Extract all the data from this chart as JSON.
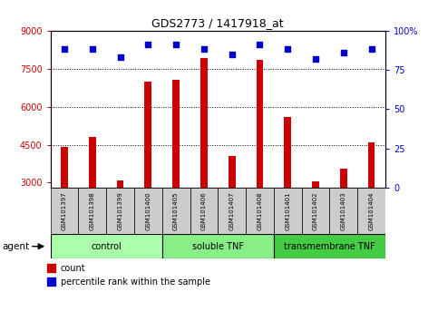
{
  "title": "GDS2773 / 1417918_at",
  "samples": [
    "GSM101397",
    "GSM101398",
    "GSM101399",
    "GSM101400",
    "GSM101405",
    "GSM101406",
    "GSM101407",
    "GSM101408",
    "GSM101401",
    "GSM101402",
    "GSM101403",
    "GSM101404"
  ],
  "counts": [
    4400,
    4800,
    3100,
    7000,
    7050,
    7900,
    4050,
    7850,
    5600,
    3050,
    3550,
    4600
  ],
  "percentile_ranks": [
    88,
    88,
    83,
    91,
    91,
    88,
    85,
    91,
    88,
    82,
    86,
    88
  ],
  "groups": [
    {
      "label": "control",
      "start": 0,
      "end": 3,
      "color": "#aaffaa"
    },
    {
      "label": "soluble TNF",
      "start": 4,
      "end": 7,
      "color": "#88ee88"
    },
    {
      "label": "transmembrane TNF",
      "start": 8,
      "end": 11,
      "color": "#44cc44"
    }
  ],
  "ylim_left": [
    2800,
    9000
  ],
  "ylim_right": [
    0,
    100
  ],
  "yticks_left": [
    3000,
    4500,
    6000,
    7500,
    9000
  ],
  "yticks_right": [
    0,
    25,
    50,
    75,
    100
  ],
  "bar_color": "#cc0000",
  "dot_color": "#0000cc",
  "grid_color": "#000000",
  "plot_bg": "#ffffff",
  "tick_area_color": "#cccccc",
  "agent_label": "agent",
  "legend_items": [
    {
      "color": "#cc0000",
      "label": "count"
    },
    {
      "color": "#0000cc",
      "label": "percentile rank within the sample"
    }
  ]
}
